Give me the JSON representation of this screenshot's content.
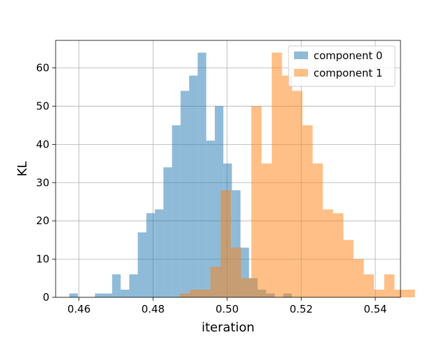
{
  "chart_data": {
    "type": "bar",
    "title": "",
    "xlabel": "iteration",
    "ylabel": "KL",
    "xlim": [
      0.4537,
      0.5468
    ],
    "ylim": [
      0,
      67.2
    ],
    "xticks": [
      0.46,
      0.48,
      0.5,
      0.52,
      0.54
    ],
    "xtick_labels": [
      "0.46",
      "0.48",
      "0.50",
      "0.52",
      "0.54"
    ],
    "yticks": [
      0,
      10,
      20,
      30,
      40,
      50,
      60
    ],
    "ytick_labels": [
      "0",
      "10",
      "20",
      "30",
      "40",
      "50",
      "60"
    ],
    "grid": true,
    "legend_position": "top-right",
    "bar_opacity": 0.5,
    "series": [
      {
        "name": "component 0",
        "color": "#1f77b4",
        "bin_start": 0.4574,
        "bin_width": 0.00231,
        "values": [
          1,
          0,
          0,
          1,
          1,
          6,
          2,
          6,
          17,
          22,
          23,
          34,
          45,
          54,
          58,
          64,
          41,
          50,
          35,
          28,
          13,
          5,
          2,
          1,
          0,
          1
        ]
      },
      {
        "name": "component 1",
        "color": "#ff7f0e",
        "bin_start": 0.4872,
        "bin_width": 0.00276,
        "values": [
          1,
          2,
          2,
          8,
          28,
          13,
          5,
          50,
          35,
          64,
          58,
          54,
          45,
          35,
          23,
          22,
          15,
          10,
          6,
          2,
          6,
          2,
          2,
          0,
          0,
          0,
          1
        ]
      }
    ]
  }
}
